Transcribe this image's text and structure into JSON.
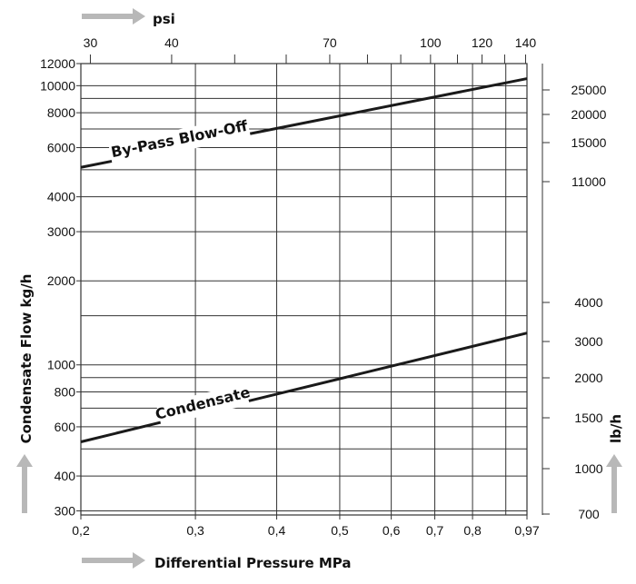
{
  "chart_data": {
    "type": "line",
    "title": "",
    "xlabel": "Differential Pressure MPa",
    "ylabel": "Condensate Flow kg/h",
    "top_axis_label": "psi",
    "right_axis_label": "lb/h",
    "x_scale": "log",
    "y_scale": "log",
    "xlim": [
      0.2,
      0.97
    ],
    "ylim": [
      290,
      12000
    ],
    "x_ticks": [
      {
        "value": 0.2,
        "label": "0,2"
      },
      {
        "value": 0.3,
        "label": "0,3"
      },
      {
        "value": 0.4,
        "label": "0,4"
      },
      {
        "value": 0.5,
        "label": "0,5"
      },
      {
        "value": 0.6,
        "label": "0,6"
      },
      {
        "value": 0.7,
        "label": "0,7"
      },
      {
        "value": 0.8,
        "label": "0,8"
      },
      {
        "value": 0.97,
        "label": "0,97"
      }
    ],
    "x_minor_grid": [
      0.9
    ],
    "y_ticks": [
      {
        "value": 300,
        "label": "300"
      },
      {
        "value": 400,
        "label": "400"
      },
      {
        "value": 600,
        "label": "600"
      },
      {
        "value": 800,
        "label": "800"
      },
      {
        "value": 1000,
        "label": "1000"
      },
      {
        "value": 2000,
        "label": "2000"
      },
      {
        "value": 3000,
        "label": "3000"
      },
      {
        "value": 4000,
        "label": "4000"
      },
      {
        "value": 6000,
        "label": "6000"
      },
      {
        "value": 8000,
        "label": "8000"
      },
      {
        "value": 10000,
        "label": "10000"
      },
      {
        "value": 12000,
        "label": "12000"
      }
    ],
    "y_minor_grid": [
      500,
      700,
      900,
      1500,
      5000,
      7000,
      9000
    ],
    "top_ticks": [
      {
        "value": 30,
        "label": "30"
      },
      {
        "value": 40,
        "label": "40"
      },
      {
        "value": 70,
        "label": "70"
      },
      {
        "value": 100,
        "label": "100"
      },
      {
        "value": 120,
        "label": "120"
      },
      {
        "value": 140,
        "label": "140"
      }
    ],
    "top_minor_ticks": [
      50,
      60,
      80,
      90,
      110,
      130
    ],
    "right_ticks": [
      {
        "value": 700,
        "label": "700"
      },
      {
        "value": 1000,
        "label": "1000"
      },
      {
        "value": 1500,
        "label": "1500"
      },
      {
        "value": 2000,
        "label": "2000"
      },
      {
        "value": 3000,
        "label": "3000"
      },
      {
        "value": 4000,
        "label": "4000"
      },
      {
        "value": 11000,
        "label": "11000"
      },
      {
        "value": 15000,
        "label": "15000"
      },
      {
        "value": 20000,
        "label": "20000"
      },
      {
        "value": 25000,
        "label": "25000"
      }
    ],
    "grid": true,
    "series": [
      {
        "name": "By-Pass Blow-Off",
        "x": [
          0.2,
          0.97
        ],
        "y": [
          5100,
          10600
        ]
      },
      {
        "name": "Condensate",
        "x": [
          0.2,
          0.97
        ],
        "y": [
          530,
          1300
        ]
      }
    ],
    "colors": {
      "line": "#1a1a1a",
      "grid": "#333333",
      "arrow": "#b8b8b8",
      "text": "#111111"
    }
  }
}
